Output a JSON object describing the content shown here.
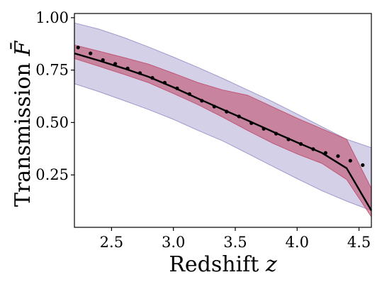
{
  "chart_data": {
    "type": "line",
    "title": "",
    "xlabel": "Redshift z",
    "ylabel": "Transmission F̄",
    "xlim": [
      2.2,
      4.6
    ],
    "ylim": [
      0.0,
      1.02
    ],
    "xticks": [
      2.5,
      3.0,
      3.5,
      4.0,
      4.5
    ],
    "xtick_labels": [
      "2.5",
      "3.0",
      "3.5",
      "4.0",
      "4.5"
    ],
    "yticks": [
      0.25,
      0.5,
      0.75,
      1.0
    ],
    "ytick_labels": [
      "0.25",
      "0.50",
      "0.75",
      "1.00"
    ],
    "grid": false,
    "legend": "none",
    "colors": {
      "line": "#000000",
      "inner_band": "#c0506e",
      "outer_band": "#9890c8",
      "points": "#000000"
    },
    "series": [
      {
        "kind": "line",
        "x": [
          2.2,
          2.4,
          2.6,
          2.8,
          3.0,
          3.2,
          3.4,
          3.6,
          3.8,
          4.0,
          4.2,
          4.4,
          4.6
        ],
        "values": [
          0.83,
          0.795,
          0.758,
          0.718,
          0.668,
          0.614,
          0.562,
          0.51,
          0.457,
          0.405,
          0.355,
          0.282,
          0.08
        ]
      },
      {
        "kind": "band",
        "x": [
          2.2,
          2.4,
          2.6,
          2.8,
          3.0,
          3.2,
          3.4,
          3.6,
          3.8,
          4.0,
          4.2,
          4.4,
          4.6
        ],
        "lower": [
          0.805,
          0.768,
          0.73,
          0.69,
          0.638,
          0.585,
          0.525,
          0.462,
          0.402,
          0.35,
          0.305,
          0.228,
          0.05
        ],
        "upper": [
          0.87,
          0.84,
          0.81,
          0.778,
          0.735,
          0.69,
          0.655,
          0.63,
          0.575,
          0.52,
          0.47,
          0.42,
          0.185
        ]
      },
      {
        "kind": "band",
        "x": [
          2.2,
          2.4,
          2.6,
          2.8,
          3.0,
          3.2,
          3.4,
          3.6,
          3.8,
          4.0,
          4.2,
          4.4,
          4.6
        ],
        "lower": [
          0.685,
          0.647,
          0.605,
          0.562,
          0.515,
          0.462,
          0.412,
          0.352,
          0.292,
          0.232,
          0.175,
          0.125,
          0.08
        ],
        "upper": [
          0.975,
          0.945,
          0.905,
          0.86,
          0.812,
          0.762,
          0.71,
          0.655,
          0.6,
          0.54,
          0.48,
          0.42,
          0.38
        ]
      },
      {
        "kind": "scatter",
        "x": [
          2.23,
          2.33,
          2.43,
          2.53,
          2.63,
          2.73,
          2.83,
          2.93,
          3.03,
          3.13,
          3.23,
          3.33,
          3.43,
          3.53,
          3.63,
          3.73,
          3.83,
          3.93,
          4.03,
          4.13,
          4.23,
          4.33,
          4.43,
          4.53
        ],
        "values": [
          0.858,
          0.83,
          0.798,
          0.78,
          0.758,
          0.736,
          0.713,
          0.69,
          0.663,
          0.636,
          0.604,
          0.576,
          0.552,
          0.529,
          0.497,
          0.47,
          0.447,
          0.42,
          0.398,
          0.373,
          0.355,
          0.34,
          0.318,
          0.297
        ]
      }
    ]
  }
}
